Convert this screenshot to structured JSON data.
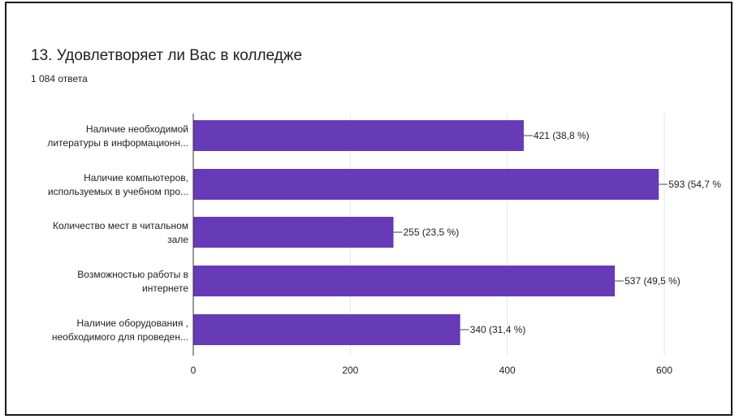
{
  "title": "13. Удовлетворяет ли Вас  в колледже",
  "subtitle": "1 084 ответа",
  "colors": {
    "bar": "#673ab7",
    "grid": "#e6e6e6",
    "axis": "#333333",
    "text": "#202124"
  },
  "chart_data": {
    "type": "bar",
    "orientation": "horizontal",
    "categories": [
      [
        "Наличие необходимой",
        "литературы в информационн..."
      ],
      [
        "Наличие компьютеров,",
        "используемых в учебном про..."
      ],
      [
        "Количество мест в читальном",
        "зале"
      ],
      [
        "Возможностью работы в",
        "интернете"
      ],
      [
        "Наличие оборудования ,",
        "необходимого для проведен..."
      ]
    ],
    "values": [
      421,
      593,
      255,
      537,
      340
    ],
    "data_labels": [
      "421 (38,8 %)",
      "593 (54,7 %",
      "255 (23,5 %)",
      "537 (49,5 %)",
      "340 (31,4 %)"
    ],
    "x_ticks": [
      0,
      200,
      400,
      600
    ],
    "xlim": [
      0,
      600
    ],
    "grid": true
  }
}
